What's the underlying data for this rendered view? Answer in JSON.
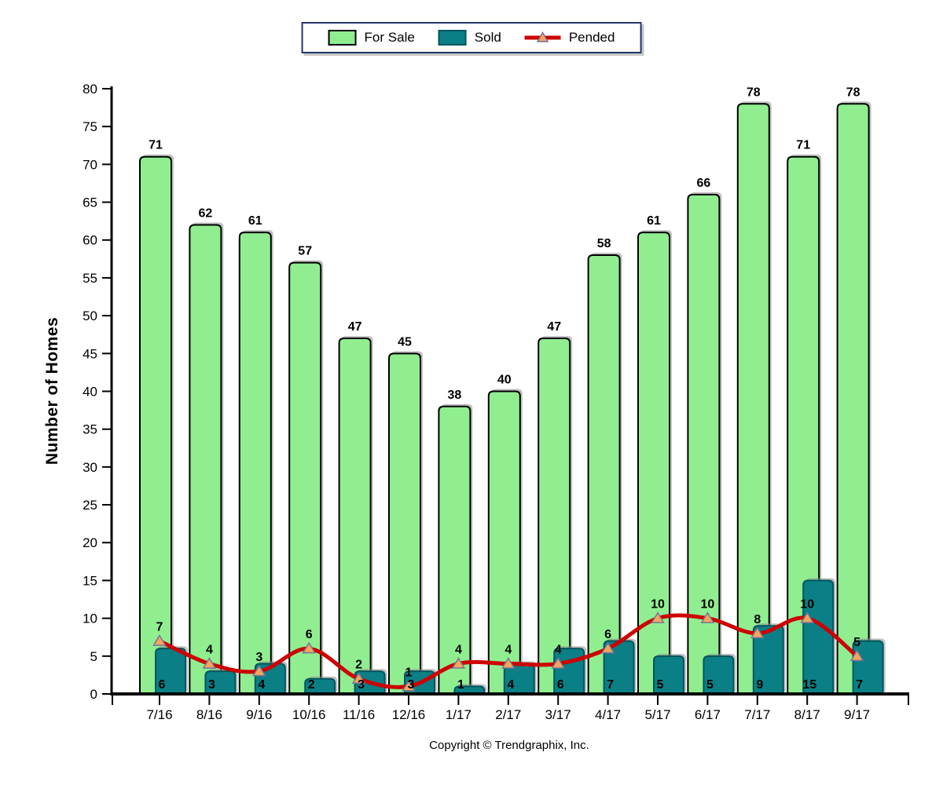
{
  "chart_data": {
    "type": "bar",
    "categories": [
      "7/16",
      "8/16",
      "9/16",
      "10/16",
      "11/16",
      "12/16",
      "1/17",
      "2/17",
      "3/17",
      "4/17",
      "5/17",
      "6/17",
      "7/17",
      "8/17",
      "9/17"
    ],
    "series": [
      {
        "name": "For Sale",
        "type": "bar",
        "values": [
          71,
          62,
          61,
          57,
          47,
          45,
          38,
          40,
          47,
          58,
          61,
          66,
          78,
          71,
          78
        ],
        "fill": "#90EE90",
        "border": "#000000"
      },
      {
        "name": "Sold",
        "type": "bar",
        "values": [
          6,
          3,
          4,
          2,
          3,
          3,
          1,
          4,
          6,
          7,
          5,
          5,
          9,
          15,
          7
        ],
        "fill": "#0A7F86",
        "border": "#03565C"
      },
      {
        "name": "Pended",
        "type": "line",
        "values": [
          7,
          4,
          3,
          6,
          2,
          1,
          4,
          4,
          4,
          6,
          10,
          10,
          8,
          10,
          5
        ],
        "line_color": "#CC0000",
        "marker": "triangle",
        "marker_fill": "#F5A55A",
        "marker_border": "#75759B"
      }
    ],
    "title": "",
    "xlabel": "",
    "ylabel": "Number of Homes",
    "ylim": [
      0,
      80
    ],
    "ytick_step": 5,
    "grid": false,
    "legend_position": "top",
    "value_labels": true
  },
  "style": {
    "legend_border": "#24356B",
    "shadow_color": "#8F8F8F",
    "axis_color": "#000000",
    "text_color": "#000000",
    "background": "#FFFFFF"
  },
  "footer": {
    "copyright": "Copyright © Trendgraphix, Inc."
  }
}
